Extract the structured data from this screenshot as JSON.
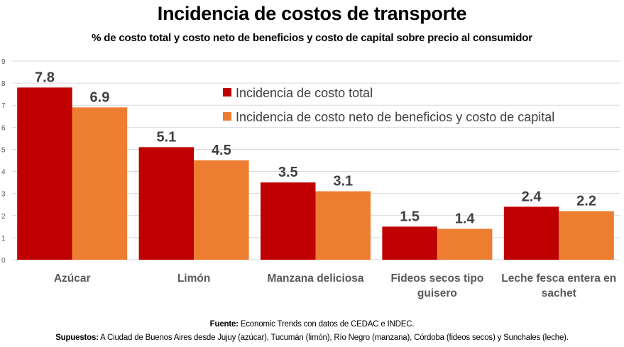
{
  "chart_data": {
    "type": "bar",
    "title": "Incidencia de costos de transporte",
    "subtitle": "% de costo total y costo neto de beneficios y costo de capital  sobre precio al consumidor",
    "xlabel": "",
    "ylabel": "",
    "ylim": [
      0,
      9
    ],
    "yticks": [
      "0",
      "1",
      "2",
      "3",
      "4",
      "5",
      "6",
      "7",
      "8",
      "9"
    ],
    "grid": true,
    "legend_position": "top-right",
    "categories": [
      [
        "Azúcar"
      ],
      [
        "Limón"
      ],
      [
        "Manzana deliciosa"
      ],
      [
        "Fideos secos tipo",
        "guisero"
      ],
      [
        "Leche fesca entera en",
        "sachet"
      ]
    ],
    "series": [
      {
        "name": "Incidencia de costo total",
        "color": "#C00000",
        "values": [
          7.8,
          5.1,
          3.5,
          1.5,
          2.4
        ],
        "labels": [
          "7.8",
          "5.1",
          "3.5",
          "1.5",
          "2.4"
        ]
      },
      {
        "name": "Incidencia de costo neto de beneficios y costo de capital",
        "color": "#ED7D31",
        "values": [
          6.9,
          4.5,
          3.1,
          1.4,
          2.2
        ],
        "labels": [
          "6.9",
          "4.5",
          "3.1",
          "1.4",
          "2.2"
        ]
      }
    ]
  },
  "footer": {
    "fuente_label": "Fuente:",
    "fuente_text": " Economic Trends con datos de CEDAC e INDEC.",
    "supuestos_label": "Supuestos:",
    "supuestos_text": " A Ciudad de Buenos Aires desde Jujuy (azúcar), Tucumán (limón), Río Negro (manzana), Córdoba (fideos secos) y Sunchales (leche)."
  }
}
